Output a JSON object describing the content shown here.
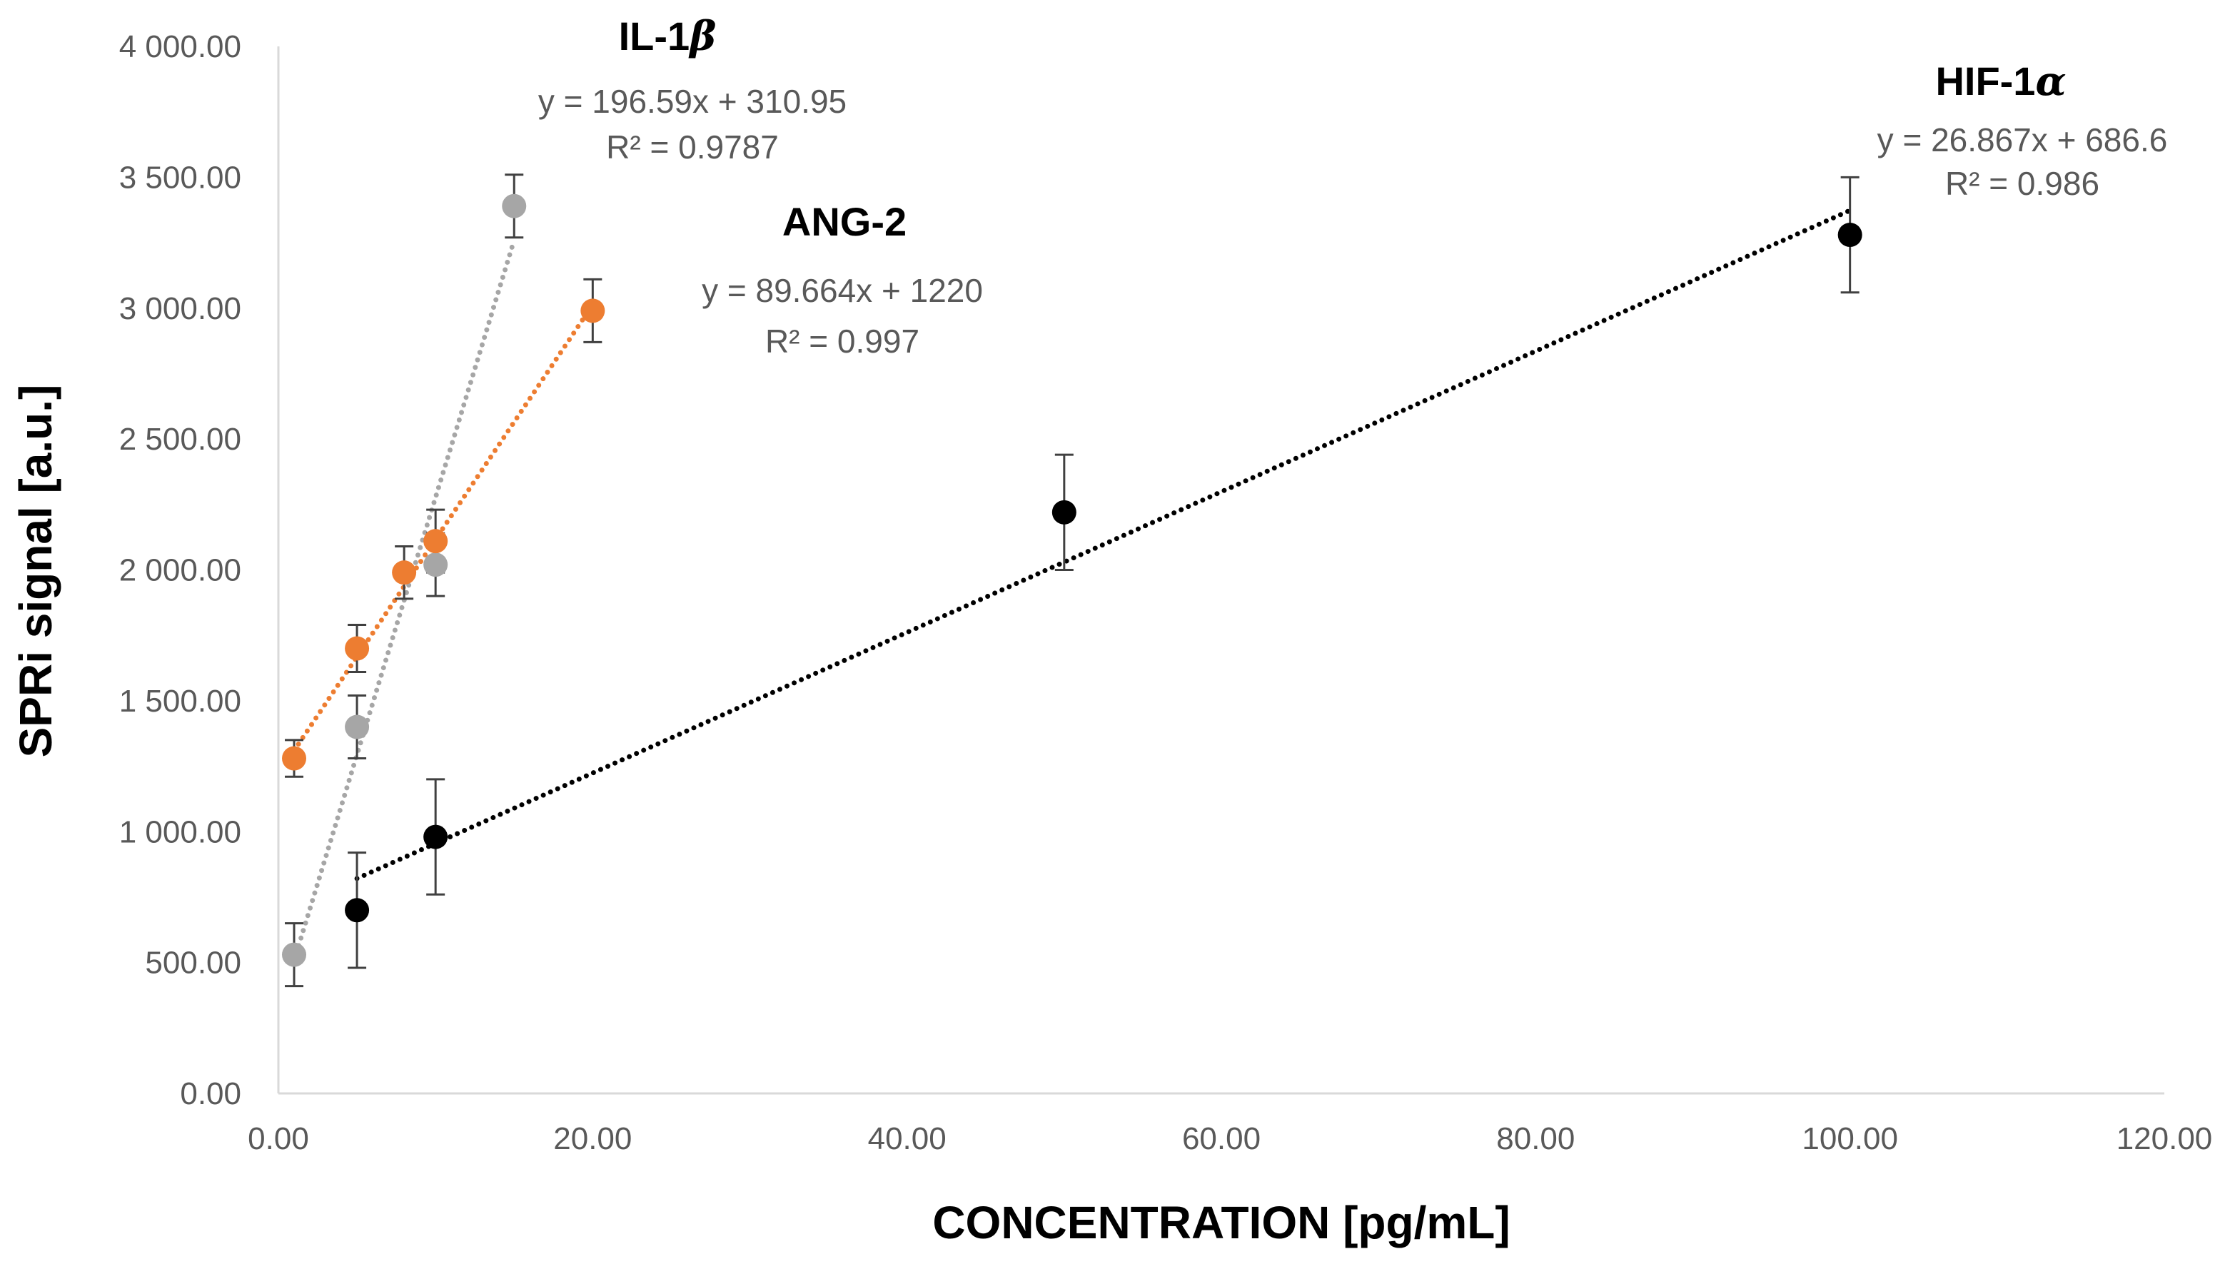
{
  "chart_data": {
    "type": "scatter",
    "title": "",
    "xlabel": "CONCENTRATION [pg/mL]",
    "ylabel": "SPRi signal [a.u.]",
    "xlim": [
      0,
      120
    ],
    "ylim": [
      0,
      4000
    ],
    "x_ticks": [
      0,
      20,
      40,
      60,
      80,
      100,
      120
    ],
    "y_ticks": [
      0,
      500,
      1000,
      1500,
      2000,
      2500,
      3000,
      3500,
      4000
    ],
    "x_tick_labels": [
      "0.00",
      "20.00",
      "40.00",
      "60.00",
      "80.00",
      "100.00",
      "120.00"
    ],
    "y_tick_labels": [
      "0.00",
      "500.00",
      "1 000.00",
      "1 500.00",
      "2 000.00",
      "2 500.00",
      "3 000.00",
      "3 500.00",
      "4 000.00"
    ],
    "grid": false,
    "series": [
      {
        "name": "IL-1",
        "greek": "β",
        "color": "#a6a6a6",
        "x": [
          1,
          5,
          10,
          15
        ],
        "y": [
          530,
          1400,
          2020,
          3390
        ],
        "err": [
          120,
          120,
          120,
          120
        ],
        "trendline": {
          "slope": 196.59,
          "intercept": 310.95,
          "x_range": [
            1,
            15
          ]
        },
        "equation": "y = 196.59x + 310.95",
        "r2": "R² = 0.9787"
      },
      {
        "name": "ANG-2",
        "greek": "",
        "color": "#ed7d31",
        "x": [
          1,
          5,
          8,
          10,
          20
        ],
        "y": [
          1280,
          1700,
          1990,
          2110,
          2990
        ],
        "err": [
          70,
          90,
          100,
          120,
          120
        ],
        "trendline": {
          "slope": 89.664,
          "intercept": 1220,
          "x_range": [
            1,
            20
          ]
        },
        "equation": "y = 89.664x + 1220",
        "r2": "R² = 0.997"
      },
      {
        "name": "HIF-1",
        "greek": "α",
        "color": "#000000",
        "x": [
          5,
          10,
          50,
          100
        ],
        "y": [
          700,
          980,
          2220,
          3280
        ],
        "err": [
          220,
          220,
          220,
          220
        ],
        "trendline": {
          "slope": 26.867,
          "intercept": 686.6,
          "x_range": [
            5,
            100
          ]
        },
        "equation": "y = 26.867x + 686.6",
        "r2": "R² = 0.986"
      }
    ]
  }
}
